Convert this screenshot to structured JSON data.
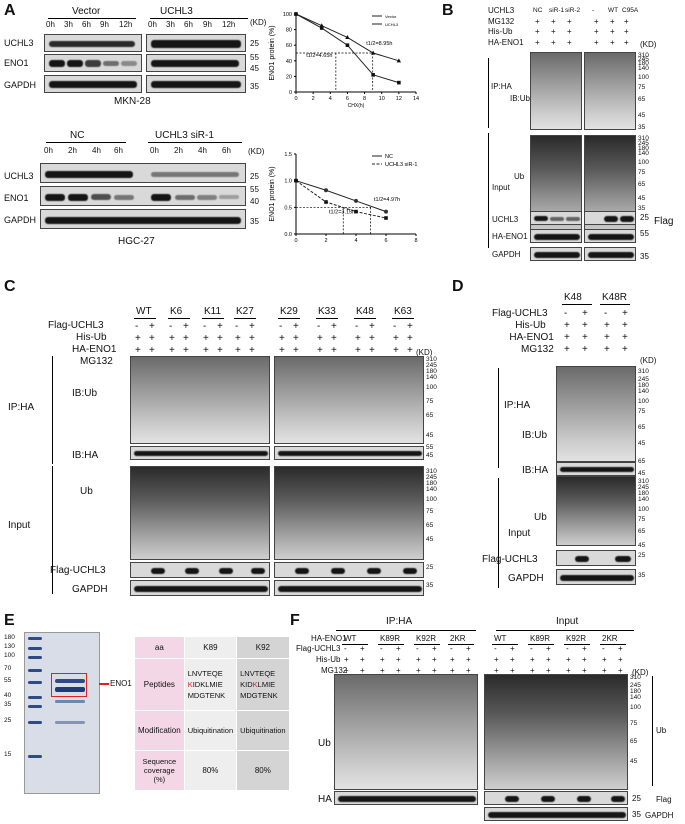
{
  "panels": {
    "A": {
      "letter": "A",
      "top_groups": [
        "Vector",
        "UCHL3"
      ],
      "top_times": [
        "0h",
        "3h",
        "6h",
        "9h",
        "12h",
        "0h",
        "3h",
        "6h",
        "9h",
        "12h"
      ],
      "top_rows": [
        "UCHL3",
        "ENO1",
        "GAPDH"
      ],
      "top_kd_header": "(KD)",
      "top_markers": [
        "25",
        "55",
        "45",
        "35"
      ],
      "top_cell": "MKN-28",
      "bottom_groups": [
        "NC",
        "UCHL3 siR-1"
      ],
      "bottom_times": [
        "0h",
        "2h",
        "4h",
        "6h",
        "0h",
        "2h",
        "4h",
        "6h"
      ],
      "bottom_rows": [
        "UCHL3",
        "ENO1",
        "GAPDH"
      ],
      "bottom_kd_header": "(KD)",
      "bottom_markers": [
        "25",
        "55",
        "40",
        "35"
      ],
      "bottom_cell": "HGC-27"
    },
    "B": {
      "letter": "B",
      "rows": [
        "UCHL3",
        "MG132",
        "His-Ub",
        "HA-ENO1"
      ],
      "uchl3_labels": [
        "NC",
        "siR-1",
        "siR-2",
        "-",
        "WT",
        "C95A"
      ],
      "signs": [
        "+",
        "+",
        "+",
        "+",
        "+",
        "+"
      ],
      "kd": "(KD)",
      "ip": "IP:HA",
      "ib": "IB:Ub",
      "input": "Input",
      "ub": "Ub",
      "blots": [
        "UCHL3",
        "HA-ENO1",
        "GAPDH"
      ],
      "flag": "Flag",
      "markers_ip": [
        "310",
        "245",
        "180",
        "140",
        "100",
        "75",
        "65",
        "45",
        "35"
      ],
      "markers_in": [
        "310",
        "245",
        "180",
        "140",
        "100",
        "75",
        "65",
        "45",
        "35"
      ],
      "markers_small": [
        "25",
        "55",
        "35"
      ]
    },
    "C": {
      "letter": "C",
      "mutants": [
        "WT",
        "K6",
        "K11",
        "K27",
        "K29",
        "K33",
        "K48",
        "K63"
      ],
      "rows": [
        "Flag-UCHL3",
        "His-Ub",
        "HA-ENO1",
        "MG132"
      ],
      "flag_signs": [
        "-",
        "+",
        "-",
        "+",
        "-",
        "+",
        "-",
        "+",
        "-",
        "+",
        "-",
        "+",
        "-",
        "+",
        "-",
        "+"
      ],
      "ip": "IP:HA",
      "ib_ub": "IB:Ub",
      "ib_ha": "IB:HA",
      "input": "Input",
      "ub": "Ub",
      "flag_uchl3": "Flag-UCHL3",
      "gapdh": "GAPDH",
      "kd": "(KD)",
      "markers": [
        "310",
        "245",
        "180",
        "140",
        "100",
        "75",
        "65",
        "45",
        "55",
        "45",
        "310",
        "245",
        "180",
        "140",
        "100",
        "75",
        "65",
        "45",
        "25",
        "35"
      ]
    },
    "D": {
      "letter": "D",
      "mutants": [
        "K48",
        "K48R"
      ],
      "rows": [
        "Flag-UCHL3",
        "His-Ub",
        "HA-ENO1",
        "MG132"
      ],
      "flag_signs": [
        "-",
        "+",
        "-",
        "+"
      ],
      "ip": "IP:HA",
      "ib_ub": "IB:Ub",
      "ib_ha": "IB:HA",
      "input": "Input",
      "ub": "Ub",
      "flag_uchl3": "Flag-UCHL3",
      "gapdh": "GAPDH",
      "kd": "(KD)",
      "markers": [
        "310",
        "245",
        "180",
        "140",
        "100",
        "75",
        "65",
        "45",
        "65",
        "45",
        "310",
        "245",
        "180",
        "140",
        "100",
        "75",
        "65",
        "45",
        "25",
        "35"
      ]
    },
    "E": {
      "letter": "E",
      "gel_markers": [
        "180",
        "130",
        "100",
        "70",
        "55",
        "40",
        "35",
        "25",
        "15"
      ],
      "eno1_label": "ENO1",
      "table": {
        "header": [
          "aa",
          "K89",
          "K92"
        ],
        "peptides_label": "Peptides",
        "k89_peptide": [
          "LNVTEQE",
          "K",
          "IDKLMIE",
          "MDGTENK"
        ],
        "k92_peptide": [
          "LNVTEQE",
          "KID",
          "K",
          "LMIE",
          "MDGTENK"
        ],
        "modification_label": "Modification",
        "modification": [
          "Ubiquitination",
          "Ubiquitination"
        ],
        "coverage_label": "Sequence coverage (%)",
        "coverage": [
          "80%",
          "80%"
        ]
      }
    },
    "F": {
      "letter": "F",
      "ip": "IP:HA",
      "input": "Input",
      "rows": [
        "HA-ENO1",
        "Flag-UCHL3",
        "His-Ub",
        "MG132"
      ],
      "mutants": [
        "WT",
        "K89R",
        "K92R",
        "2KR"
      ],
      "flag_signs": [
        "-",
        "+",
        "-",
        "+",
        "-",
        "+",
        "-",
        "+"
      ],
      "ub": "Ub",
      "ha": "HA",
      "kd": "(KD)",
      "markers": [
        "310",
        "245",
        "180",
        "140",
        "100",
        "75",
        "65",
        "45"
      ],
      "right_labels": [
        "Ub",
        "25",
        "35",
        "Flag",
        "GAPDH"
      ]
    }
  },
  "chart_data": [
    {
      "type": "line",
      "panel": "A-top",
      "x": [
        0,
        3,
        6,
        9,
        12
      ],
      "series": [
        {
          "name": "Vector",
          "values": [
            100,
            82,
            60,
            22,
            12
          ]
        },
        {
          "name": "UCHL3",
          "values": [
            100,
            85,
            70,
            50,
            40
          ]
        }
      ],
      "xlabel": "CHX(h)",
      "ylabel": "ENO1 protein (%)",
      "xlim": [
        0,
        14
      ],
      "ylim": [
        0,
        100
      ],
      "xticks": [
        0,
        2,
        4,
        6,
        8,
        10,
        12,
        14
      ],
      "yticks": [
        0,
        20,
        40,
        60,
        80,
        100
      ],
      "annotations": [
        "t1/2=4.65h",
        "t1/2=8.95h"
      ],
      "legend": "top-right"
    },
    {
      "type": "line",
      "panel": "A-bottom",
      "x": [
        0,
        2,
        4,
        6
      ],
      "series": [
        {
          "name": "NC",
          "values": [
            1.0,
            0.82,
            0.62,
            0.42
          ]
        },
        {
          "name": "UCHL3 siR-1",
          "values": [
            1.0,
            0.6,
            0.42,
            0.3
          ]
        }
      ],
      "xlabel": "",
      "ylabel": "ENO1 protein (%)",
      "xlim": [
        0,
        8
      ],
      "ylim": [
        0,
        1.5
      ],
      "xticks": [
        0,
        2,
        4,
        6,
        8
      ],
      "yticks": [
        0.0,
        0.5,
        1.0,
        1.5
      ],
      "annotations": [
        "t1/2=4.97h",
        "t1/2=3.15h"
      ],
      "legend": "top-right"
    }
  ]
}
